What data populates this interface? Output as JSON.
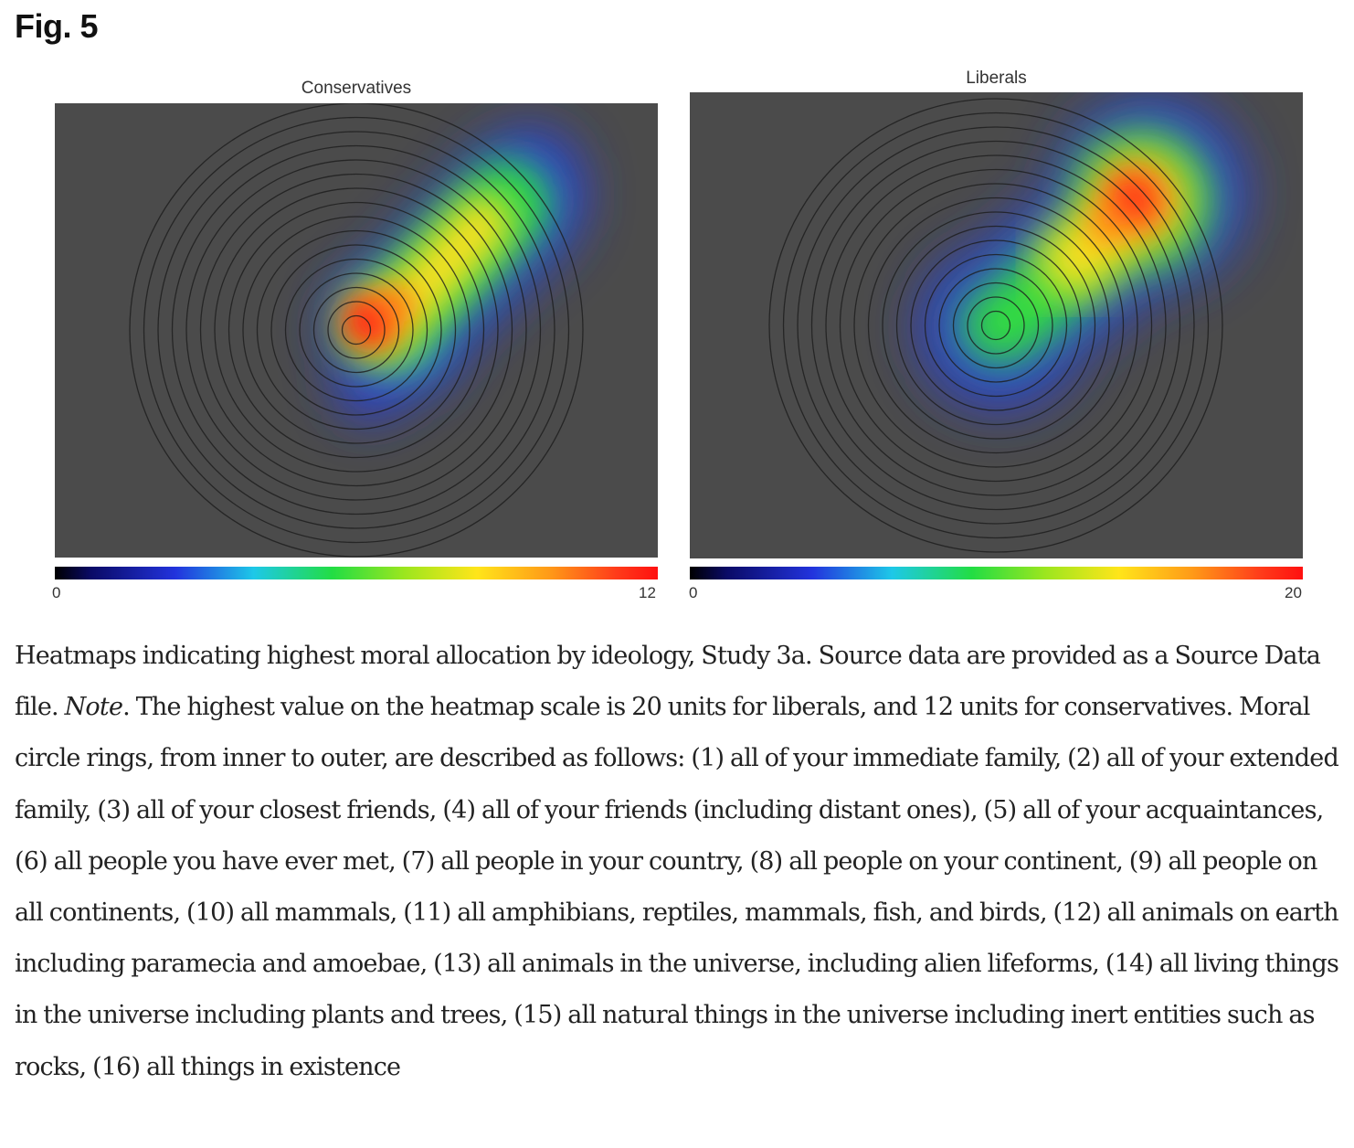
{
  "figure_label": "Fig. 5",
  "chart_data": [
    {
      "type": "heatmap",
      "title": "Conservatives",
      "rings": 16,
      "colorbar": {
        "min": 0,
        "max": 12,
        "min_label": "0",
        "max_label": "12"
      }
    },
    {
      "type": "heatmap",
      "title": "Liberals",
      "rings": 16,
      "colorbar": {
        "min": 0,
        "max": 20,
        "min_label": "0",
        "max_label": "20"
      }
    }
  ],
  "caption": {
    "part1": "Heatmaps indicating highest moral allocation by ideology, Study 3a. Source data are provided as a Source Data file. ",
    "note": "Note",
    "part2": ". The highest value on the heatmap scale is 20 units for liberals, and 12 units for conservatives. Moral circle rings, from inner to outer, are described as follows: (1) all of your immediate family, (2) all of your extended family, (3) all of your closest friends, (4) all of your friends (including distant ones), (5) all of your acquaintances, (6) all people you have ever met, (7) all people in your country, (8) all people on your continent, (9) all people on all continents, (10) all mammals, (11) all amphibians, reptiles, mammals, fish, and birds, (12) all animals on earth including paramecia and amoebae, (13) all animals in the universe, including alien lifeforms, (14) all living things in the universe including plants and trees, (15) all natural things in the universe including inert entities such as rocks, (16) all things in existence"
  }
}
